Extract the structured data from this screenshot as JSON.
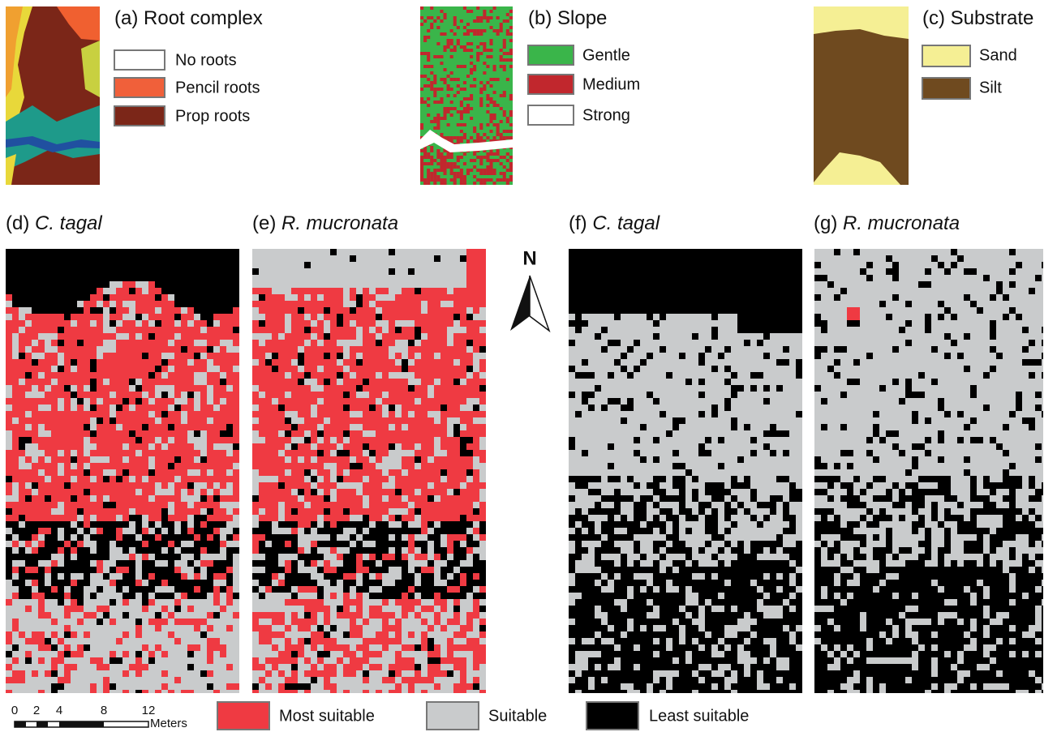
{
  "panels": [
    {
      "label": "(a)",
      "title": "Root complex",
      "legend": [
        "No roots",
        "Pencil roots",
        "Prop roots"
      ]
    },
    {
      "label": "(b)",
      "title": "Slope",
      "legend": [
        "Gentle",
        "Medium",
        "Strong"
      ]
    },
    {
      "label": "(c)",
      "title": "Substrate",
      "legend": [
        "Sand",
        "Silt"
      ]
    }
  ],
  "maps": [
    {
      "label": "(d)",
      "species": "C. tagal"
    },
    {
      "label": "(e)",
      "species": "R. mucronata"
    },
    {
      "label": "(f)",
      "species": "C. tagal"
    },
    {
      "label": "(g)",
      "species": "R. mucronata"
    }
  ],
  "north": "N",
  "scale": {
    "ticks": [
      0,
      2,
      4,
      8,
      12
    ],
    "unit": "Meters"
  },
  "legend": [
    "Most suitable",
    "Suitable",
    "Least suitable"
  ]
}
